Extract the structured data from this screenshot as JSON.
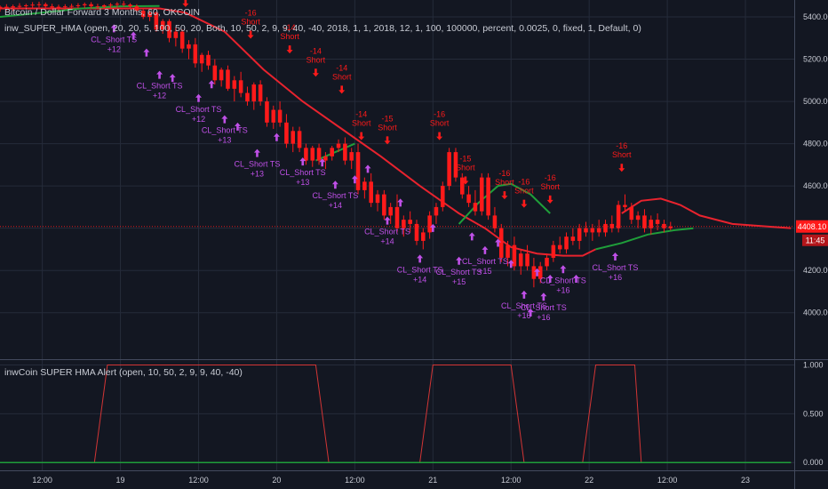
{
  "header": {
    "symbol_line": "Bitcoin / Dollar Forward 3 Months, 60, OKCOIN",
    "indicator_line": "inw_SUPER_HMA (open, 20, 20, 5, 100, 50, 20, Both, 10, 50, 2, 9, 9, 40, -40, 2018, 1, 1, 2018, 12, 1, 100, 100000, percent, 0.0025, 0, fixed, 1, Default, 0)",
    "lower_pane_line": "inwCoin SUPER HMA Alert (open, 10, 50, 2, 9, 9, 40, -40)"
  },
  "price_badge": {
    "price": "4408.10",
    "countdown": "11:45"
  },
  "colors": {
    "background": "#131722",
    "grid": "#252b3a",
    "candle": "#ff1a1a",
    "hma_falling": "#e8232e",
    "hma_rising": "#1f9e3a",
    "signal": "#c050e8",
    "alert_line": "#d23535"
  },
  "signal_texts": {
    "short": "Short",
    "close": "CL_Short TS"
  },
  "chart_data": [
    {
      "type": "candlestick",
      "title": "Bitcoin / Dollar Forward 3 Months, 60, OKCOIN",
      "y_ticks": [
        4000,
        4200,
        4400,
        4600,
        4800,
        5000,
        5200,
        5400
      ],
      "y_tick_labels": [
        "4000.00",
        "4200.00",
        "4400.00",
        "4600.00",
        "4800.00",
        "5000.00",
        "5200.00",
        "5400.00"
      ],
      "ylim": [
        3780,
        5480
      ],
      "current_price": 4408.1,
      "x_tick_labels": [
        "12:00",
        "19",
        "12:00",
        "20",
        "12:00",
        "21",
        "12:00",
        "22",
        "12:00",
        "23"
      ],
      "x_tick_hours": [
        12,
        24,
        36,
        48,
        60,
        72,
        84,
        96,
        108,
        120
      ],
      "x_range_hours": [
        5.5,
        127.5
      ],
      "ohlc_start_hour": 5.5,
      "ohlc_step_hours": 1,
      "ohlc": [
        [
          5440,
          5455,
          5425,
          5448
        ],
        [
          5448,
          5460,
          5430,
          5445
        ],
        [
          5445,
          5458,
          5428,
          5450
        ],
        [
          5450,
          5465,
          5438,
          5452
        ],
        [
          5452,
          5462,
          5440,
          5455
        ],
        [
          5455,
          5470,
          5442,
          5458
        ],
        [
          5458,
          5472,
          5445,
          5460
        ],
        [
          5460,
          5468,
          5440,
          5450
        ],
        [
          5450,
          5462,
          5432,
          5445
        ],
        [
          5445,
          5458,
          5430,
          5448
        ],
        [
          5448,
          5460,
          5435,
          5450
        ],
        [
          5450,
          5462,
          5438,
          5452
        ],
        [
          5452,
          5465,
          5440,
          5455
        ],
        [
          5455,
          5468,
          5442,
          5460
        ],
        [
          5460,
          5470,
          5440,
          5450
        ],
        [
          5450,
          5462,
          5435,
          5448
        ],
        [
          5448,
          5460,
          5438,
          5455
        ],
        [
          5455,
          5466,
          5442,
          5458
        ],
        [
          5458,
          5470,
          5445,
          5462
        ],
        [
          5462,
          5475,
          5448,
          5458
        ],
        [
          5458,
          5465,
          5440,
          5450
        ],
        [
          5450,
          5460,
          5420,
          5430
        ],
        [
          5430,
          5440,
          5390,
          5400
        ],
        [
          5400,
          5430,
          5380,
          5420
        ],
        [
          5420,
          5425,
          5330,
          5340
        ],
        [
          5340,
          5390,
          5320,
          5380
        ],
        [
          5380,
          5390,
          5280,
          5300
        ],
        [
          5300,
          5350,
          5260,
          5330
        ],
        [
          5330,
          5340,
          5230,
          5250
        ],
        [
          5250,
          5290,
          5200,
          5270
        ],
        [
          5270,
          5300,
          5160,
          5180
        ],
        [
          5180,
          5230,
          5140,
          5220
        ],
        [
          5220,
          5240,
          5150,
          5170
        ],
        [
          5170,
          5200,
          5080,
          5100
        ],
        [
          5100,
          5160,
          5070,
          5150
        ],
        [
          5150,
          5170,
          5050,
          5060
        ],
        [
          5060,
          5120,
          5000,
          5100
        ],
        [
          5100,
          5140,
          5020,
          5040
        ],
        [
          5040,
          5070,
          4980,
          5000
        ],
        [
          5000,
          5090,
          4960,
          5080
        ],
        [
          5080,
          5100,
          4980,
          5000
        ],
        [
          5000,
          5020,
          4880,
          4900
        ],
        [
          4900,
          4980,
          4870,
          4960
        ],
        [
          4960,
          5000,
          4880,
          4900
        ],
        [
          4900,
          4940,
          4780,
          4800
        ],
        [
          4800,
          4880,
          4760,
          4860
        ],
        [
          4860,
          4880,
          4760,
          4780
        ],
        [
          4780,
          4800,
          4700,
          4720
        ],
        [
          4720,
          4790,
          4690,
          4780
        ],
        [
          4780,
          4800,
          4700,
          4720
        ],
        [
          4720,
          4760,
          4680,
          4740
        ],
        [
          4740,
          4790,
          4720,
          4780
        ],
        [
          4780,
          4820,
          4760,
          4800
        ],
        [
          4800,
          4830,
          4700,
          4720
        ],
        [
          4720,
          4780,
          4680,
          4760
        ],
        [
          4760,
          4800,
          4560,
          4580
        ],
        [
          4580,
          4640,
          4540,
          4620
        ],
        [
          4620,
          4660,
          4500,
          4520
        ],
        [
          4520,
          4580,
          4480,
          4560
        ],
        [
          4560,
          4580,
          4440,
          4460
        ],
        [
          4460,
          4520,
          4420,
          4500
        ],
        [
          4500,
          4560,
          4380,
          4400
        ],
        [
          4400,
          4460,
          4360,
          4440
        ],
        [
          4440,
          4480,
          4380,
          4420
        ],
        [
          4420,
          4440,
          4320,
          4340
        ],
        [
          4340,
          4400,
          4300,
          4380
        ],
        [
          4380,
          4480,
          4350,
          4460
        ],
        [
          4460,
          4520,
          4420,
          4500
        ],
        [
          4500,
          4620,
          4480,
          4600
        ],
        [
          4600,
          4780,
          4580,
          4760
        ],
        [
          4760,
          4780,
          4620,
          4640
        ],
        [
          4640,
          4660,
          4540,
          4560
        ],
        [
          4560,
          4600,
          4500,
          4520
        ],
        [
          4520,
          4580,
          4460,
          4480
        ],
        [
          4480,
          4660,
          4460,
          4640
        ],
        [
          4640,
          4660,
          4440,
          4460
        ],
        [
          4460,
          4500,
          4380,
          4400
        ],
        [
          4400,
          4420,
          4240,
          4260
        ],
        [
          4260,
          4340,
          4220,
          4320
        ],
        [
          4320,
          4360,
          4200,
          4220
        ],
        [
          4220,
          4300,
          4180,
          4280
        ],
        [
          4280,
          4320,
          4200,
          4220
        ],
        [
          4220,
          4260,
          4120,
          4160
        ],
        [
          4160,
          4240,
          4140,
          4220
        ],
        [
          4220,
          4280,
          4200,
          4260
        ],
        [
          4260,
          4340,
          4240,
          4320
        ],
        [
          4320,
          4360,
          4280,
          4300
        ],
        [
          4300,
          4380,
          4280,
          4360
        ],
        [
          4360,
          4400,
          4320,
          4340
        ],
        [
          4340,
          4420,
          4300,
          4400
        ],
        [
          4400,
          4430,
          4360,
          4380
        ],
        [
          4380,
          4420,
          4340,
          4400
        ],
        [
          4400,
          4440,
          4360,
          4380
        ],
        [
          4380,
          4440,
          4360,
          4420
        ],
        [
          4420,
          4460,
          4380,
          4400
        ],
        [
          4400,
          4530,
          4380,
          4510
        ],
        [
          4510,
          4560,
          4480,
          4500
        ],
        [
          4500,
          4520,
          4420,
          4440
        ],
        [
          4440,
          4480,
          4400,
          4460
        ],
        [
          4460,
          4490,
          4380,
          4400
        ],
        [
          4400,
          4460,
          4370,
          4440
        ],
        [
          4440,
          4470,
          4390,
          4420
        ],
        [
          4420,
          4440,
          4380,
          4400
        ],
        [
          4400,
          4430,
          4390,
          4408
        ]
      ],
      "hma_series": [
        {
          "name": "",
          "color": "#e8232e",
          "points": [
            [
              5.5,
              5440
            ],
            [
              30,
              5440
            ],
            [
              34,
              5420
            ],
            [
              40,
              5330
            ],
            [
              46,
              5150
            ],
            [
              52,
              5000
            ],
            [
              58,
              4870
            ],
            [
              64,
              4740
            ],
            [
              70,
              4600
            ],
            [
              76,
              4470
            ],
            [
              80,
              4400
            ],
            [
              84,
              4310
            ],
            [
              88,
              4280
            ],
            [
              92,
              4270
            ],
            [
              95,
              4270
            ],
            [
              97,
              4300
            ]
          ]
        },
        {
          "name": "",
          "color": "#1f9e3a",
          "points": [
            [
              5.5,
              5400
            ],
            [
              12,
              5420
            ],
            [
              18,
              5440
            ],
            [
              24,
              5450
            ],
            [
              30,
              5452
            ]
          ]
        },
        {
          "name": "",
          "color": "#1f9e3a",
          "points": [
            [
              54,
              4720
            ],
            [
              57,
              4760
            ],
            [
              60,
              4800
            ]
          ]
        },
        {
          "name": "",
          "color": "#1f9e3a",
          "points": [
            [
              76,
              4420
            ],
            [
              79,
              4520
            ],
            [
              82,
              4600
            ],
            [
              84,
              4610
            ],
            [
              87,
              4560
            ],
            [
              90,
              4470
            ]
          ]
        },
        {
          "name": "",
          "color": "#1f9e3a",
          "points": [
            [
              97,
              4300
            ],
            [
              101,
              4330
            ],
            [
              105,
              4370
            ],
            [
              109,
              4390
            ],
            [
              112,
              4400
            ]
          ]
        },
        {
          "name": "",
          "color": "#e8232e",
          "points": [
            [
              101,
              4470
            ],
            [
              104,
              4530
            ],
            [
              107,
              4540
            ],
            [
              110,
              4510
            ],
            [
              113,
              4460
            ],
            [
              118,
              4420
            ],
            [
              127,
              4400
            ]
          ]
        }
      ],
      "short_signals": [
        {
          "hour": 34,
          "value": 5430,
          "label": "-13"
        },
        {
          "hour": 44,
          "value": 5280,
          "label": "-16"
        },
        {
          "hour": 50,
          "value": 5210,
          "label": "-14"
        },
        {
          "hour": 54,
          "value": 5100,
          "label": "-14"
        },
        {
          "hour": 58,
          "value": 5020,
          "label": "-14"
        },
        {
          "hour": 61,
          "value": 4800,
          "label": "-14"
        },
        {
          "hour": 65,
          "value": 4780,
          "label": "-15"
        },
        {
          "hour": 73,
          "value": 4800,
          "label": "-16"
        },
        {
          "hour": 77,
          "value": 4590,
          "label": "-15"
        },
        {
          "hour": 83,
          "value": 4520,
          "label": "-16"
        },
        {
          "hour": 86,
          "value": 4480,
          "label": "-16"
        },
        {
          "hour": 90,
          "value": 4500,
          "label": "-16"
        },
        {
          "hour": 101,
          "value": 4650,
          "label": "-16"
        }
      ],
      "cover_signals": [
        {
          "hour": 23,
          "value": 5390,
          "label": "+12"
        },
        {
          "hour": 30,
          "value": 5170,
          "label": "+12"
        },
        {
          "hour": 36,
          "value": 5060,
          "label": "+12"
        },
        {
          "hour": 40,
          "value": 4960,
          "label": "+13"
        },
        {
          "hour": 45,
          "value": 4800,
          "label": "+13"
        },
        {
          "hour": 52,
          "value": 4760,
          "label": "+13"
        },
        {
          "hour": 57,
          "value": 4650,
          "label": "+14"
        },
        {
          "hour": 65,
          "value": 4480,
          "label": "+14"
        },
        {
          "hour": 70,
          "value": 4300,
          "label": "+14"
        },
        {
          "hour": 76,
          "value": 4290,
          "label": "+15"
        },
        {
          "hour": 80,
          "value": 4340,
          "label": "+15"
        },
        {
          "hour": 86,
          "value": 4130,
          "label": "+16"
        },
        {
          "hour": 89,
          "value": 4120,
          "label": "+16"
        },
        {
          "hour": 92,
          "value": 4250,
          "label": "+16"
        },
        {
          "hour": 100,
          "value": 4310,
          "label": "+16"
        }
      ],
      "cover_markers_unlabeled": [
        [
          26,
          5330
        ],
        [
          28,
          5250
        ],
        [
          32,
          5130
        ],
        [
          38,
          5100
        ],
        [
          42,
          4900
        ],
        [
          48,
          4850
        ],
        [
          55,
          4730
        ],
        [
          60,
          4650
        ],
        [
          62,
          4700
        ],
        [
          67,
          4540
        ],
        [
          72,
          4420
        ],
        [
          78,
          4380
        ],
        [
          82,
          4350
        ],
        [
          84,
          4250
        ],
        [
          87,
          4020
        ],
        [
          88,
          4210
        ],
        [
          90,
          4180
        ],
        [
          94,
          4180
        ]
      ]
    },
    {
      "type": "line",
      "title": "inwCoin SUPER HMA Alert (open, 10, 50, 2, 9, 9, 40, -40)",
      "y_ticks": [
        0,
        0.5,
        1
      ],
      "y_tick_labels": [
        "0.000",
        "0.500",
        "1.000"
      ],
      "ylim": [
        -0.08,
        1.05
      ],
      "series": [
        {
          "name": "",
          "color": "#d23535",
          "x": [
            5.5,
            20,
            22,
            54,
            56,
            70,
            72,
            84,
            86,
            95,
            97,
            103,
            104,
            105,
            127
          ],
          "y": [
            0,
            0,
            1,
            1,
            0,
            0,
            1,
            1,
            0,
            0,
            1,
            1,
            0,
            0,
            0
          ]
        },
        {
          "name": "",
          "color": "#1f9e3a",
          "x": [
            5.5,
            22,
            54,
            56,
            70,
            72,
            84,
            86,
            95,
            97,
            127
          ],
          "y": [
            0,
            0,
            0,
            0,
            0,
            0,
            0,
            0,
            0,
            0,
            0
          ]
        }
      ]
    }
  ]
}
